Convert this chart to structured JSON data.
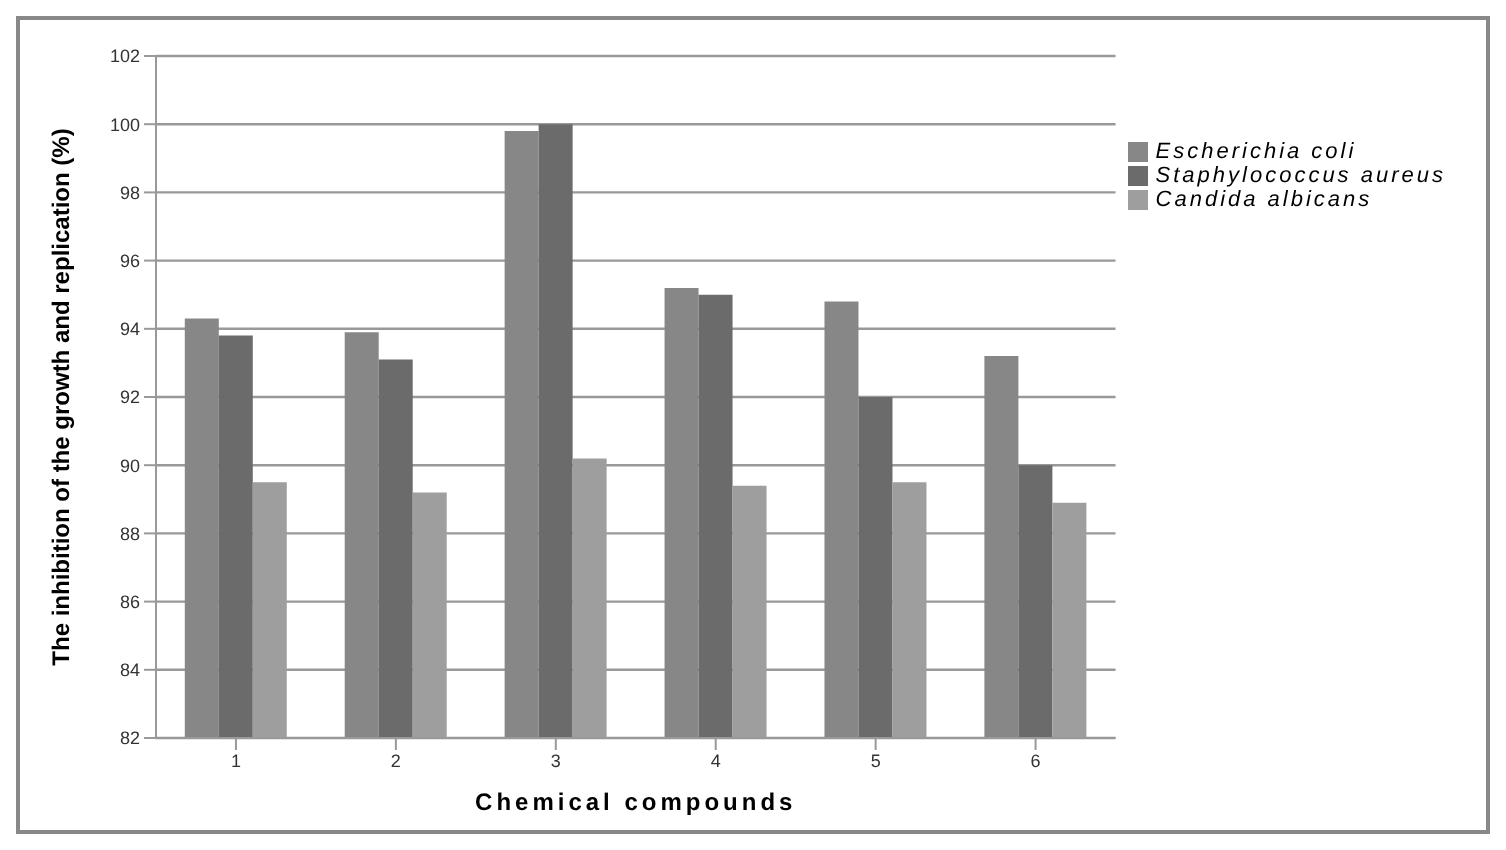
{
  "chart_data": {
    "type": "bar",
    "xlabel": "Chemical compounds",
    "ylabel": "The inhibition of the growth and replication (%)",
    "categories": [
      "1",
      "2",
      "3",
      "4",
      "5",
      "6"
    ],
    "series": [
      {
        "name": "Escherichia coli",
        "color": "#878787",
        "values": [
          94.3,
          93.9,
          99.8,
          95.2,
          94.8,
          93.2
        ]
      },
      {
        "name": "Staphylococcus aureus",
        "color": "#6b6b6b",
        "values": [
          93.8,
          93.1,
          100,
          95.0,
          92.0,
          90.0
        ]
      },
      {
        "name": "Candida albicans",
        "color": "#9e9e9e",
        "values": [
          89.5,
          89.2,
          90.2,
          89.4,
          89.5,
          88.9
        ]
      }
    ],
    "ylim": [
      82,
      102
    ],
    "yticks": [
      82,
      84,
      86,
      88,
      90,
      92,
      94,
      96,
      98,
      100,
      102
    ],
    "grid": "y",
    "legend": "right"
  }
}
